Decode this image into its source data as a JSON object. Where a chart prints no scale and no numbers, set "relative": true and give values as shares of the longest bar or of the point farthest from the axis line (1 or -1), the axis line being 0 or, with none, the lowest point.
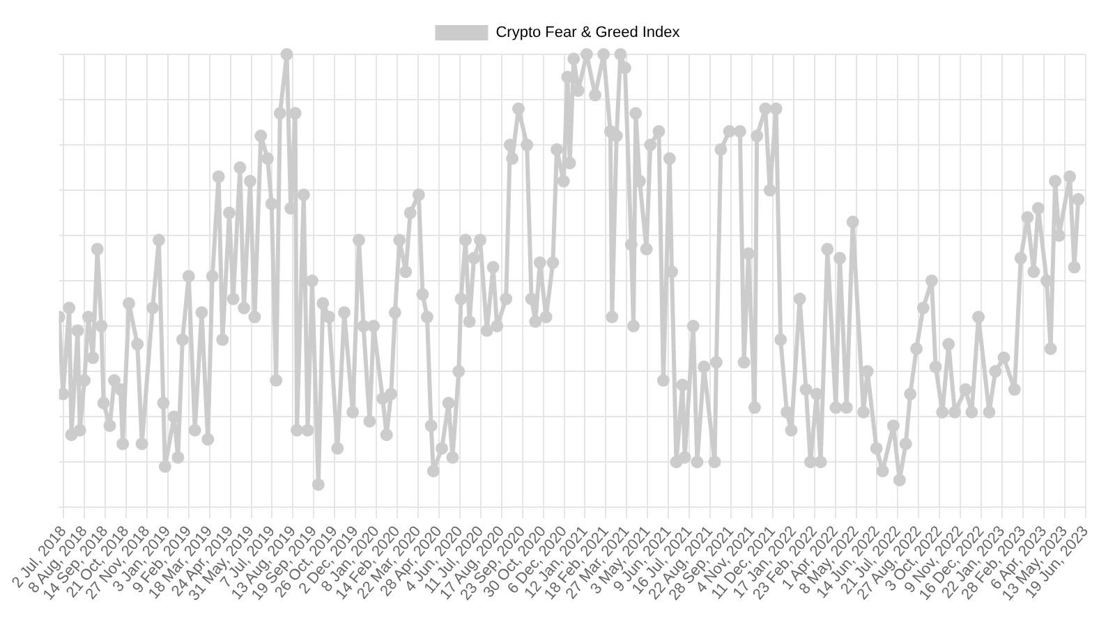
{
  "chart_data": {
    "type": "line",
    "relative": true,
    "legend": "top",
    "grid": true,
    "marker": "circle",
    "xlim": [
      "2018-06-24",
      "2023-06-19"
    ],
    "xticks": [
      {
        "value": "2018-07-02",
        "label": "2 Jul, 2018"
      },
      {
        "value": "2018-08-08",
        "label": "8 Aug, 2018"
      },
      {
        "value": "2018-09-14",
        "label": "14 Sep, 2018"
      },
      {
        "value": "2018-10-21",
        "label": "21 Oct, 2018"
      },
      {
        "value": "2018-11-27",
        "label": "27 Nov, 2018"
      },
      {
        "value": "2019-01-03",
        "label": "3 Jan, 2019"
      },
      {
        "value": "2019-02-09",
        "label": "9 Feb, 2019"
      },
      {
        "value": "2019-03-18",
        "label": "18 Mar, 2019"
      },
      {
        "value": "2019-04-24",
        "label": "24 Apr, 2019"
      },
      {
        "value": "2019-05-31",
        "label": "31 May, 2019"
      },
      {
        "value": "2019-07-07",
        "label": "7 Jul, 2019"
      },
      {
        "value": "2019-08-13",
        "label": "13 Aug, 2019"
      },
      {
        "value": "2019-09-19",
        "label": "19 Sep, 2019"
      },
      {
        "value": "2019-10-26",
        "label": "26 Oct, 2019"
      },
      {
        "value": "2019-12-02",
        "label": "2 Dec, 2019"
      },
      {
        "value": "2020-01-08",
        "label": "8 Jan, 2020"
      },
      {
        "value": "2020-02-14",
        "label": "14 Feb, 2020"
      },
      {
        "value": "2020-03-22",
        "label": "22 Mar, 2020"
      },
      {
        "value": "2020-04-28",
        "label": "28 Apr, 2020"
      },
      {
        "value": "2020-06-04",
        "label": "4 Jun, 2020"
      },
      {
        "value": "2020-07-11",
        "label": "11 Jul, 2020"
      },
      {
        "value": "2020-08-17",
        "label": "17 Aug, 2020"
      },
      {
        "value": "2020-09-23",
        "label": "23 Sep, 2020"
      },
      {
        "value": "2020-10-30",
        "label": "30 Oct, 2020"
      },
      {
        "value": "2020-12-06",
        "label": "6 Dec, 2020"
      },
      {
        "value": "2021-01-12",
        "label": "12 Jan, 2021"
      },
      {
        "value": "2021-02-18",
        "label": "18 Feb, 2021"
      },
      {
        "value": "2021-03-27",
        "label": "27 Mar, 2021"
      },
      {
        "value": "2021-05-03",
        "label": "3 May, 2021"
      },
      {
        "value": "2021-06-09",
        "label": "9 Jun, 2021"
      },
      {
        "value": "2021-07-16",
        "label": "16 Jul, 2021"
      },
      {
        "value": "2021-08-22",
        "label": "22 Aug, 2021"
      },
      {
        "value": "2021-09-28",
        "label": "28 Sep, 2021"
      },
      {
        "value": "2021-11-04",
        "label": "4 Nov, 2021"
      },
      {
        "value": "2021-12-11",
        "label": "11 Dec, 2021"
      },
      {
        "value": "2022-01-17",
        "label": "17 Jan, 2022"
      },
      {
        "value": "2022-02-23",
        "label": "23 Feb, 2022"
      },
      {
        "value": "2022-04-01",
        "label": "1 Apr, 2022"
      },
      {
        "value": "2022-05-08",
        "label": "8 May, 2022"
      },
      {
        "value": "2022-06-14",
        "label": "14 Jun, 2022"
      },
      {
        "value": "2022-07-21",
        "label": "21 Jul, 2022"
      },
      {
        "value": "2022-08-27",
        "label": "27 Aug, 2022"
      },
      {
        "value": "2022-10-03",
        "label": "3 Oct, 2022"
      },
      {
        "value": "2022-11-09",
        "label": "9 Nov, 2022"
      },
      {
        "value": "2022-12-16",
        "label": "16 Dec, 2022"
      },
      {
        "value": "2023-01-22",
        "label": "22 Jan, 2023"
      },
      {
        "value": "2023-02-28",
        "label": "28 Feb, 2023"
      },
      {
        "value": "2023-04-06",
        "label": "6 Apr, 2023"
      },
      {
        "value": "2023-05-13",
        "label": "13 May, 2023"
      },
      {
        "value": "2023-06-19",
        "label": "19 Jun, 2023"
      }
    ],
    "x": [
      "2018-06-24",
      "2018-07-01",
      "2018-07-12",
      "2018-07-16",
      "2018-07-27",
      "2018-07-31",
      "2018-08-08",
      "2018-08-15",
      "2018-08-23",
      "2018-08-31",
      "2018-09-07",
      "2018-09-11",
      "2018-09-22",
      "2018-09-30",
      "2018-10-11",
      "2018-10-15",
      "2018-10-26",
      "2018-11-10",
      "2018-11-18",
      "2018-12-07",
      "2018-12-18",
      "2018-12-26",
      "2018-12-29",
      "2019-01-14",
      "2019-01-21",
      "2019-01-29",
      "2019-02-09",
      "2019-02-20",
      "2019-03-04",
      "2019-03-15",
      "2019-03-23",
      "2019-04-03",
      "2019-04-10",
      "2019-04-22",
      "2019-04-29",
      "2019-05-11",
      "2019-05-18",
      "2019-05-29",
      "2019-06-06",
      "2019-06-17",
      "2019-06-29",
      "2019-07-06",
      "2019-07-14",
      "2019-07-21",
      "2019-08-02",
      "2019-08-09",
      "2019-08-17",
      "2019-08-20",
      "2019-09-01",
      "2019-09-08",
      "2019-09-16",
      "2019-09-27",
      "2019-10-05",
      "2019-10-16",
      "2019-10-31",
      "2019-11-12",
      "2019-11-27",
      "2019-12-08",
      "2019-12-16",
      "2019-12-27",
      "2020-01-03",
      "2020-01-19",
      "2020-01-26",
      "2020-02-03",
      "2020-02-10",
      "2020-02-18",
      "2020-02-29",
      "2020-03-08",
      "2020-03-23",
      "2020-03-30",
      "2020-04-07",
      "2020-04-14",
      "2020-04-18",
      "2020-05-03",
      "2020-05-15",
      "2020-05-22",
      "2020-06-02",
      "2020-06-06",
      "2020-06-14",
      "2020-06-21",
      "2020-06-29",
      "2020-07-10",
      "2020-07-22",
      "2020-08-02",
      "2020-08-09",
      "2020-08-25",
      "2020-09-01",
      "2020-09-05",
      "2020-09-16",
      "2020-10-01",
      "2020-10-09",
      "2020-10-16",
      "2020-10-24",
      "2020-11-04",
      "2020-11-16",
      "2020-11-23",
      "2020-12-05",
      "2020-12-12",
      "2020-12-16",
      "2020-12-23",
      "2020-12-31",
      "2021-01-15",
      "2021-01-30",
      "2021-02-14",
      "2021-02-26",
      "2021-03-01",
      "2021-03-09",
      "2021-03-16",
      "2021-03-24",
      "2021-04-04",
      "2021-04-08",
      "2021-04-12",
      "2021-04-19",
      "2021-05-01",
      "2021-05-08",
      "2021-05-23",
      "2021-05-31",
      "2021-06-11",
      "2021-06-15",
      "2021-06-23",
      "2021-07-04",
      "2021-07-08",
      "2021-07-23",
      "2021-07-30",
      "2021-08-11",
      "2021-08-30",
      "2021-09-02",
      "2021-09-10",
      "2021-09-25",
      "2021-10-14",
      "2021-10-21",
      "2021-10-29",
      "2021-11-09",
      "2021-11-13",
      "2021-11-28",
      "2021-12-06",
      "2021-12-17",
      "2021-12-25",
      "2022-01-05",
      "2022-01-13",
      "2022-01-28",
      "2022-02-08",
      "2022-02-16",
      "2022-02-27",
      "2022-03-06",
      "2022-03-18",
      "2022-04-02",
      "2022-04-09",
      "2022-04-21",
      "2022-05-02",
      "2022-05-21",
      "2022-05-28",
      "2022-06-13",
      "2022-06-24",
      "2022-07-13",
      "2022-07-24",
      "2022-08-04",
      "2022-08-12",
      "2022-08-23",
      "2022-09-04",
      "2022-09-19",
      "2022-09-26",
      "2022-10-08",
      "2022-10-19",
      "2022-10-30",
      "2022-11-18",
      "2022-11-29",
      "2022-12-11",
      "2022-12-30",
      "2023-01-10",
      "2023-01-25",
      "2023-02-13",
      "2023-02-24",
      "2023-03-08",
      "2023-03-19",
      "2023-03-27",
      "2023-04-11",
      "2023-04-18",
      "2023-04-26",
      "2023-05-03",
      "2023-05-22",
      "2023-05-30",
      "2023-06-06"
    ],
    "series": [
      {
        "name": "Crypto Fear & Greed Index",
        "color": "#cccccc",
        "values": [
          0.42,
          0.25,
          0.44,
          0.16,
          0.39,
          0.17,
          0.28,
          0.42,
          0.33,
          0.57,
          0.4,
          0.23,
          0.18,
          0.28,
          0.26,
          0.14,
          0.45,
          0.36,
          0.14,
          0.44,
          0.59,
          0.23,
          0.09,
          0.2,
          0.11,
          0.37,
          0.51,
          0.17,
          0.43,
          0.15,
          0.51,
          0.73,
          0.37,
          0.65,
          0.46,
          0.75,
          0.44,
          0.72,
          0.42,
          0.82,
          0.77,
          0.67,
          0.28,
          0.87,
          1,
          0.66,
          0.87,
          0.17,
          0.69,
          0.17,
          0.5,
          0.05,
          0.45,
          0.42,
          0.13,
          0.43,
          0.21,
          0.59,
          0.4,
          0.19,
          0.4,
          0.24,
          0.16,
          0.25,
          0.43,
          0.59,
          0.52,
          0.65,
          0.69,
          0.47,
          0.42,
          0.18,
          0.08,
          0.13,
          0.23,
          0.11,
          0.3,
          0.46,
          0.59,
          0.41,
          0.55,
          0.59,
          0.39,
          0.53,
          0.4,
          0.46,
          0.8,
          0.77,
          0.88,
          0.8,
          0.46,
          0.41,
          0.54,
          0.42,
          0.54,
          0.79,
          0.72,
          0.95,
          0.76,
          0.99,
          0.92,
          1,
          0.91,
          1,
          0.83,
          0.42,
          0.82,
          1,
          0.97,
          0.58,
          0.4,
          0.87,
          0.72,
          0.57,
          0.8,
          0.83,
          0.28,
          0.77,
          0.52,
          0.1,
          0.27,
          0.11,
          0.4,
          0.1,
          0.31,
          0.1,
          0.32,
          0.79,
          0.83,
          0.83,
          0.32,
          0.56,
          0.22,
          0.82,
          0.88,
          0.7,
          0.88,
          0.37,
          0.21,
          0.17,
          0.46,
          0.26,
          0.1,
          0.25,
          0.1,
          0.57,
          0.22,
          0.55,
          0.22,
          0.63,
          0.21,
          0.3,
          0.13,
          0.08,
          0.18,
          0.06,
          0.14,
          0.25,
          0.35,
          0.44,
          0.5,
          0.31,
          0.21,
          0.36,
          0.21,
          0.26,
          0.21,
          0.42,
          0.21,
          0.3,
          0.33,
          0.26,
          0.55,
          0.64,
          0.52,
          0.66,
          0.5,
          0.35,
          0.72,
          0.6,
          0.73,
          0.53,
          0.68
        ]
      }
    ]
  }
}
